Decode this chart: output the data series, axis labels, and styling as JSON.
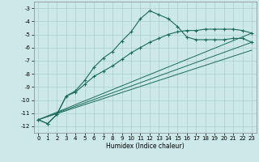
{
  "xlabel": "Humidex (Indice chaleur)",
  "ylabel": "",
  "bg_color": "#cde8e8",
  "grid_color": "#aacfcf",
  "line_color": "#1a6b5a",
  "xlim": [
    -0.5,
    23.5
  ],
  "ylim": [
    -12.5,
    -2.5
  ],
  "yticks": [
    -3,
    -4,
    -5,
    -6,
    -7,
    -8,
    -9,
    -10,
    -11,
    -12
  ],
  "xticks": [
    0,
    1,
    2,
    3,
    4,
    5,
    6,
    7,
    8,
    9,
    10,
    11,
    12,
    13,
    14,
    15,
    16,
    17,
    18,
    19,
    20,
    21,
    22,
    23
  ],
  "curve1_x": [
    0,
    1,
    2,
    3,
    4,
    5,
    6,
    7,
    8,
    9,
    10,
    11,
    12,
    13,
    14,
    15,
    16,
    17,
    18,
    19,
    20,
    21,
    22,
    23
  ],
  "curve1_y": [
    -11.5,
    -11.8,
    -11.1,
    -9.7,
    -9.3,
    -8.5,
    -7.5,
    -6.8,
    -6.3,
    -5.5,
    -4.8,
    -3.8,
    -3.2,
    -3.5,
    -3.8,
    -4.4,
    -5.2,
    -5.4,
    -5.4,
    -5.4,
    -5.4,
    -5.3,
    -5.3,
    -5.6
  ],
  "curve2_x": [
    0,
    1,
    2,
    3,
    4,
    5,
    6,
    7,
    8,
    9,
    10,
    11,
    12,
    13,
    14,
    15,
    16,
    17,
    18,
    19,
    20,
    21,
    22,
    23
  ],
  "curve2_y": [
    -11.5,
    -11.8,
    -11.1,
    -9.7,
    -9.4,
    -8.8,
    -8.2,
    -7.8,
    -7.4,
    -6.9,
    -6.4,
    -6.0,
    -5.6,
    -5.3,
    -5.0,
    -4.8,
    -4.7,
    -4.7,
    -4.6,
    -4.6,
    -4.6,
    -4.6,
    -4.7,
    -4.9
  ],
  "line1_x": [
    0,
    23
  ],
  "line1_y": [
    -11.5,
    -5.6
  ],
  "line2_x": [
    0,
    23
  ],
  "line2_y": [
    -11.5,
    -4.9
  ],
  "line3_x": [
    0,
    23
  ],
  "line3_y": [
    -11.5,
    -6.2
  ]
}
